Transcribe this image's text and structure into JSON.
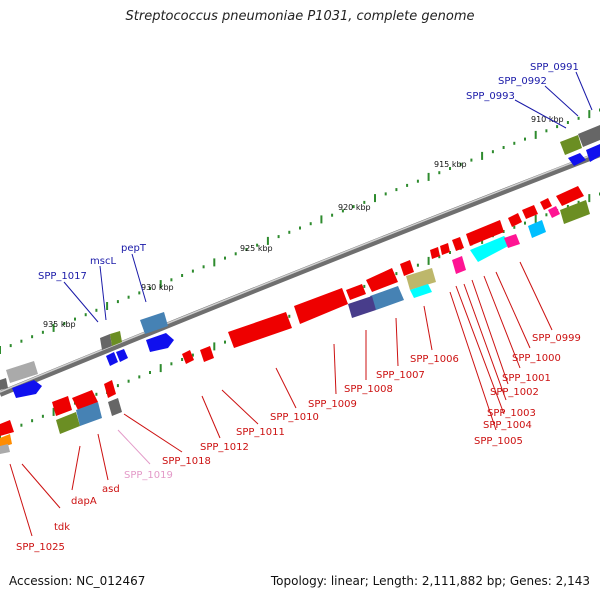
{
  "title": "Streptococcus pneumoniae P1031, complete genome",
  "footer": {
    "accession": "Accession: NC_012467",
    "summary": "Topology: linear; Length: 2,111,882 bp; Genes: 2,143"
  },
  "colors": {
    "top_label": "#1a1aa8",
    "bottom_label": "#cc1111",
    "pink_label": "#e39ac8",
    "backbone": "#8a8a8a",
    "tick": "#2e8b2e"
  },
  "kbp_labels": [
    "910 kbp",
    "915 kbp",
    "920 kbp",
    "925 kbp",
    "930 kbp",
    "935 kbp"
  ],
  "top_labels": [
    "SPP_0991",
    "SPP_0992",
    "SPP_0993",
    "pepT",
    "mscL",
    "SPP_1017"
  ],
  "bottom_labels": [
    "SPP_0999",
    "SPP_1000",
    "SPP_1001",
    "SPP_1002",
    "SPP_1003",
    "SPP_1004",
    "SPP_1005",
    "SPP_1006",
    "SPP_1007",
    "SPP_1008",
    "SPP_1009",
    "SPP_1010",
    "SPP_1011",
    "SPP_1012",
    "SPP_1018",
    "SPP_1019",
    "asd",
    "dapA",
    "tdk",
    "SPP_1025"
  ]
}
